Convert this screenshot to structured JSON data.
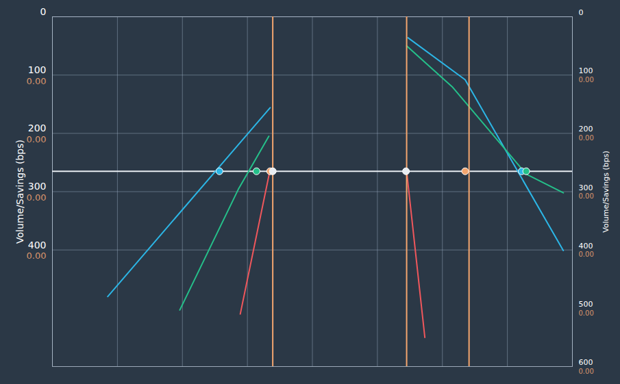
{
  "chart_data": {
    "type": "line",
    "ylabel": "Volume/Savings (bps)",
    "y2label": "Volume/Savings (bps)",
    "xlim": [
      0,
      8
    ],
    "xticks": [
      0,
      1,
      2,
      3,
      4,
      5,
      6,
      7,
      8
    ],
    "ylim": [
      0,
      600
    ],
    "yticks": [
      0,
      100,
      200,
      300,
      400
    ],
    "ytick_sublabels": [
      null,
      "0.00",
      "0.00",
      "0.00",
      "0.00"
    ],
    "y2lim": [
      0,
      600
    ],
    "y2ticks": [
      0,
      100,
      200,
      300,
      400,
      500,
      600
    ],
    "y2tick_sublabels": [
      null,
      "0.00",
      "0.00",
      "0.00",
      "0.00",
      "0.00",
      "0.00"
    ],
    "grid": true,
    "tick_labels": "y",
    "series": [
      {
        "type": "line",
        "color": "#e8edf2",
        "x": [
          0,
          8
        ],
        "values": [
          265,
          265
        ]
      },
      {
        "type": "line",
        "color": "#2cb6e6",
        "x": [
          0.85,
          3.35
        ],
        "values": [
          480,
          156
        ]
      },
      {
        "type": "line",
        "color": "#25c08a",
        "x": [
          1.96,
          2.86,
          3.33
        ],
        "values": [
          503,
          296,
          205
        ]
      },
      {
        "type": "line",
        "color": "#f0575c",
        "x": [
          2.89,
          3.35
        ],
        "values": [
          510,
          262
        ]
      },
      {
        "type": "line",
        "color": "#f0575c",
        "x": [
          5.45,
          5.73
        ],
        "values": [
          265,
          550
        ]
      },
      {
        "type": "line",
        "color": "#2cb6e6",
        "x": [
          5.47,
          6.35,
          7.86
        ],
        "values": [
          36,
          108,
          401
        ]
      },
      {
        "type": "line",
        "color": "#25c08a",
        "x": [
          5.45,
          6.15,
          7.29,
          7.86
        ],
        "values": [
          50,
          120,
          270,
          302
        ]
      },
      {
        "type": "line",
        "color": "#f4a66f",
        "x": [
          3.39,
          3.39
        ],
        "values": [
          0,
          600
        ]
      },
      {
        "type": "line",
        "color": "#f4a66f",
        "x": [
          5.45,
          5.45
        ],
        "values": [
          0,
          600
        ]
      },
      {
        "type": "line",
        "color": "#f4a66f",
        "x": [
          6.41,
          6.41
        ],
        "values": [
          0,
          600
        ]
      },
      {
        "type": "scatter",
        "marker": "circle",
        "x": [
          2.57,
          3.14,
          3.35,
          3.39,
          5.44,
          6.35,
          7.22,
          7.29
        ],
        "values": [
          265,
          265,
          265,
          265,
          265,
          265,
          265,
          265
        ],
        "colors": [
          "#2cb6e6",
          "#25c08a",
          "#f4a66f",
          "#e8edf2",
          "#e8edf2",
          "#f4a66f",
          "#2cb6e6",
          "#25c08a"
        ]
      }
    ]
  }
}
